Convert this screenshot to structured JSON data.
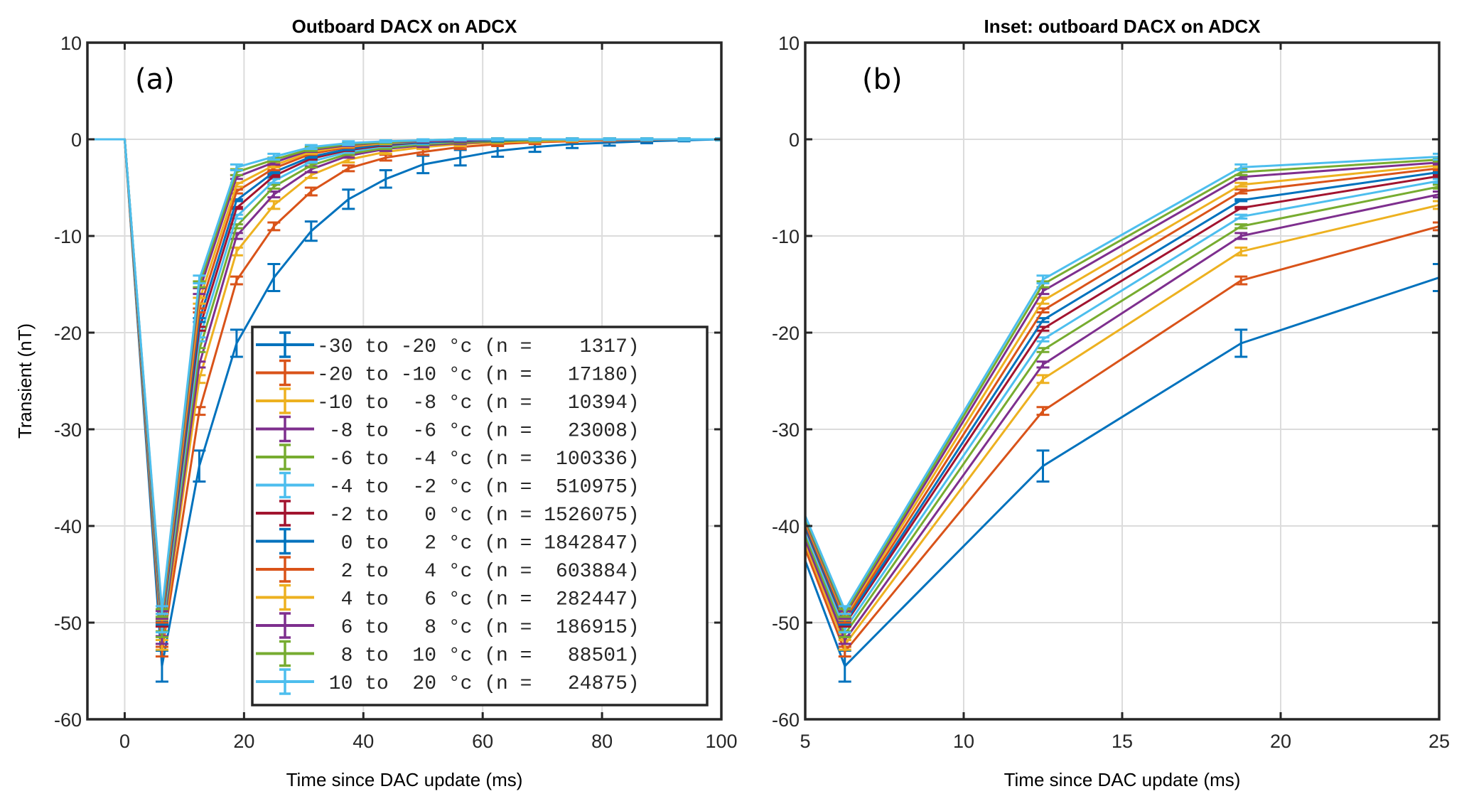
{
  "chart_data": [
    {
      "id": "a",
      "type": "line",
      "title": "Outboard DACX on ADCX",
      "panel_label": "(a)",
      "xlabel": "Time since DAC update (ms)",
      "ylabel": "Transient (nT)",
      "xlim": [
        -6.25,
        100
      ],
      "ylim": [
        -60,
        10
      ],
      "xticks": [
        0,
        20,
        40,
        60,
        80,
        100
      ],
      "yticks": [
        10,
        0,
        -10,
        -20,
        -30,
        -40,
        -50,
        -60
      ],
      "grid": true,
      "legend": true,
      "legend_position": "lower-right"
    },
    {
      "id": "b",
      "type": "line",
      "title": "Inset: outboard DACX on ADCX",
      "panel_label": "(b)",
      "xlabel": "Time since DAC update (ms)",
      "ylabel": "",
      "xlim": [
        5,
        25
      ],
      "ylim": [
        -60,
        10
      ],
      "xticks": [
        5,
        10,
        15,
        20,
        25
      ],
      "yticks": [
        10,
        0,
        -10,
        -20,
        -30,
        -40,
        -50,
        -60
      ],
      "grid": true,
      "legend": false
    }
  ],
  "shared_series": {
    "x": [
      -6.25,
      0,
      6.25,
      12.5,
      18.75,
      25,
      31.25,
      37.5,
      43.75,
      50,
      56.25,
      62.5,
      68.75,
      75,
      81.25,
      87.5,
      93.75,
      100
    ],
    "series": [
      {
        "name": "-30 to -20 °c (n =    1317)",
        "color": "#0072BD",
        "values": [
          0,
          0,
          -54.5,
          -33.8,
          -21.1,
          -14.3,
          -9.5,
          -6.2,
          -4.1,
          -2.6,
          -1.9,
          -1.2,
          -0.8,
          -0.5,
          -0.35,
          -0.2,
          -0.1,
          0
        ],
        "errors": [
          0,
          0,
          1.6,
          1.6,
          1.4,
          1.4,
          1.0,
          1.0,
          0.9,
          0.9,
          0.8,
          0.6,
          0.5,
          0.4,
          0.3,
          0.2,
          0.1,
          0.1
        ]
      },
      {
        "name": "-20 to -10 °c (n =   17180)",
        "color": "#D95319",
        "values": [
          0,
          0,
          -53.0,
          -28.1,
          -14.6,
          -9.0,
          -5.4,
          -3.0,
          -1.9,
          -1.3,
          -0.8,
          -0.5,
          -0.3,
          -0.2,
          -0.1,
          -0.05,
          0,
          0
        ],
        "errors": [
          0,
          0,
          0.5,
          0.4,
          0.4,
          0.4,
          0.4,
          0.3,
          0.3,
          0.3,
          0.2,
          0.2,
          0.2,
          0.1,
          0.1,
          0.1,
          0.1,
          0.1
        ]
      },
      {
        "name": "-10 to  -8 °c (n =   10394)",
        "color": "#EDB120",
        "values": [
          0,
          0,
          -52.3,
          -24.8,
          -11.6,
          -6.8,
          -3.7,
          -2.1,
          -1.3,
          -0.8,
          -0.5,
          -0.3,
          -0.2,
          -0.1,
          0,
          0,
          0,
          0
        ],
        "errors": [
          0,
          0,
          0.5,
          0.4,
          0.4,
          0.4,
          0.3,
          0.3,
          0.2,
          0.2,
          0.2,
          0.1,
          0.1,
          0.1,
          0.1,
          0.1,
          0.1,
          0.1
        ]
      },
      {
        "name": " -8 to  -6 °c (n =   23008)",
        "color": "#7E2F8E",
        "values": [
          0,
          0,
          -51.8,
          -23.3,
          -10.0,
          -5.7,
          -3.1,
          -1.7,
          -1.0,
          -0.6,
          -0.4,
          -0.2,
          -0.1,
          0,
          0,
          0,
          0,
          0
        ],
        "errors": [
          0,
          0,
          0.4,
          0.3,
          0.3,
          0.3,
          0.3,
          0.2,
          0.2,
          0.2,
          0.1,
          0.1,
          0.1,
          0.1,
          0.1,
          0.1,
          0.1,
          0.1
        ]
      },
      {
        "name": " -6 to  -4 °c (n =  100336)",
        "color": "#77AC30",
        "values": [
          0,
          0,
          -51.2,
          -21.8,
          -9.0,
          -4.9,
          -2.7,
          -1.5,
          -0.9,
          -0.5,
          -0.3,
          -0.2,
          -0.1,
          0,
          0,
          0,
          0,
          0
        ],
        "errors": [
          0,
          0,
          0.3,
          0.2,
          0.2,
          0.2,
          0.2,
          0.1,
          0.1,
          0.1,
          0.1,
          0.1,
          0.1,
          0.1,
          0.1,
          0.1,
          0.1,
          0.1
        ]
      },
      {
        "name": " -4 to  -2 °c (n =  510975)",
        "color": "#4DBEEE",
        "values": [
          0,
          0,
          -50.7,
          -20.7,
          -8.0,
          -4.3,
          -2.3,
          -1.3,
          -0.7,
          -0.4,
          -0.2,
          -0.1,
          0,
          0,
          0,
          0,
          0,
          0
        ],
        "errors": [
          0,
          0,
          0.3,
          0.2,
          0.2,
          0.2,
          0.1,
          0.1,
          0.1,
          0.1,
          0.1,
          0.1,
          0.1,
          0.1,
          0.1,
          0.1,
          0.1,
          0.1
        ]
      },
      {
        "name": " -2 to   0 °c (n = 1526075)",
        "color": "#A2142F",
        "values": [
          0,
          0,
          -50.2,
          -19.6,
          -7.1,
          -3.8,
          -2.0,
          -1.1,
          -0.6,
          -0.3,
          -0.2,
          -0.1,
          0,
          0,
          0,
          0,
          0,
          0
        ],
        "errors": [
          0,
          0,
          0.2,
          0.2,
          0.1,
          0.1,
          0.1,
          0.1,
          0.1,
          0.1,
          0.1,
          0.1,
          0.1,
          0.1,
          0.1,
          0.1,
          0.1,
          0.1
        ]
      },
      {
        "name": "  0 to   2 °c (n = 1842847)",
        "color": "#0072BD",
        "values": [
          0,
          0,
          -50.0,
          -18.7,
          -6.3,
          -3.4,
          -1.8,
          -1.0,
          -0.5,
          -0.3,
          -0.15,
          -0.1,
          0,
          0,
          0,
          0,
          0,
          0
        ],
        "errors": [
          0,
          0,
          0.2,
          0.2,
          0.1,
          0.1,
          0.1,
          0.1,
          0.1,
          0.1,
          0.1,
          0.1,
          0.1,
          0.1,
          0.1,
          0.1,
          0.1,
          0.1
        ]
      },
      {
        "name": "  2 to   4 °c (n =  603884)",
        "color": "#D95319",
        "values": [
          0,
          0,
          -49.7,
          -17.7,
          -5.4,
          -3.0,
          -1.5,
          -0.8,
          -0.4,
          -0.2,
          -0.1,
          0,
          0,
          0,
          0,
          0,
          0,
          0
        ],
        "errors": [
          0,
          0,
          0.3,
          0.2,
          0.2,
          0.2,
          0.1,
          0.1,
          0.1,
          0.1,
          0.1,
          0.1,
          0.1,
          0.1,
          0.1,
          0.1,
          0.1,
          0.1
        ]
      },
      {
        "name": "  4 to   6 °c (n =  282447)",
        "color": "#EDB120",
        "values": [
          0,
          0,
          -49.4,
          -16.7,
          -4.7,
          -2.7,
          -1.3,
          -0.7,
          -0.4,
          -0.2,
          -0.1,
          0,
          0,
          0,
          0,
          0,
          0,
          0
        ],
        "errors": [
          0,
          0,
          0.3,
          0.3,
          0.2,
          0.2,
          0.2,
          0.1,
          0.1,
          0.1,
          0.1,
          0.1,
          0.1,
          0.1,
          0.1,
          0.1,
          0.1,
          0.1
        ]
      },
      {
        "name": "  6 to   8 °c (n =  186915)",
        "color": "#7E2F8E",
        "values": [
          0,
          0,
          -49.2,
          -15.7,
          -3.9,
          -2.4,
          -1.1,
          -0.6,
          -0.3,
          -0.2,
          -0.1,
          0,
          0,
          0,
          0,
          0,
          0,
          0
        ],
        "errors": [
          0,
          0,
          0.4,
          0.3,
          0.2,
          0.2,
          0.2,
          0.1,
          0.1,
          0.1,
          0.1,
          0.1,
          0.1,
          0.1,
          0.1,
          0.1,
          0.1,
          0.1
        ]
      },
      {
        "name": "  8 to  10 °c (n =   88501)",
        "color": "#77AC30",
        "values": [
          0,
          0,
          -49.0,
          -15.0,
          -3.4,
          -2.1,
          -1.0,
          -0.5,
          -0.3,
          -0.1,
          0,
          0,
          0,
          0,
          0,
          0,
          0,
          0
        ],
        "errors": [
          0,
          0,
          0.4,
          0.3,
          0.3,
          0.2,
          0.2,
          0.1,
          0.1,
          0.1,
          0.1,
          0.1,
          0.1,
          0.1,
          0.1,
          0.1,
          0.1,
          0.1
        ]
      },
      {
        "name": " 10 to  20 °c (n =   24875)",
        "color": "#4DBEEE",
        "values": [
          0,
          0,
          -48.7,
          -14.5,
          -2.9,
          -1.8,
          -0.8,
          -0.4,
          -0.2,
          -0.1,
          0,
          0,
          0,
          0,
          0,
          0,
          0,
          0
        ],
        "errors": [
          0,
          0,
          0.4,
          0.4,
          0.3,
          0.3,
          0.2,
          0.2,
          0.1,
          0.1,
          0.1,
          0.1,
          0.1,
          0.1,
          0.1,
          0.1,
          0.1,
          0.1
        ]
      }
    ]
  }
}
